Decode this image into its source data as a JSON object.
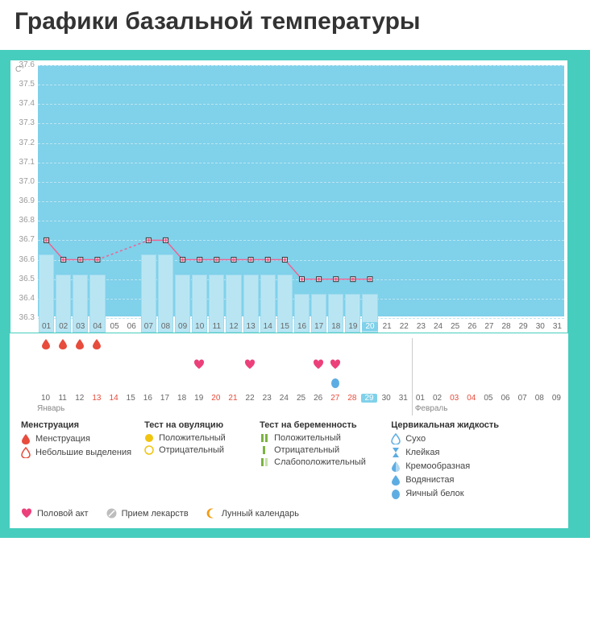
{
  "title": "Графики базальной температуры",
  "chart": {
    "ylabel": "C°",
    "ymin": 36.3,
    "ymax": 37.6,
    "ystep": 0.1,
    "xdays": [
      1,
      2,
      3,
      4,
      5,
      6,
      7,
      8,
      9,
      10,
      11,
      12,
      13,
      14,
      15,
      16,
      17,
      18,
      19,
      20,
      21,
      22,
      23,
      24,
      25,
      26,
      27,
      28,
      29,
      30,
      31
    ],
    "highlight_day": 20,
    "temps": [
      36.7,
      36.6,
      36.6,
      36.6,
      null,
      null,
      36.7,
      36.7,
      36.6,
      36.6,
      36.6,
      36.6,
      36.6,
      36.6,
      36.6,
      36.5,
      36.5,
      36.5,
      36.5,
      36.5,
      null,
      null,
      null,
      null,
      null,
      null,
      null,
      null,
      null,
      null,
      null
    ],
    "bar_fill": "#b9e5f3",
    "bar_border": "#9edbef",
    "area_bg": "#80d1ea",
    "grid_color": "#bbe6f3",
    "line_color": "#f06292",
    "marker_border": "#333333",
    "marker_fill": "#ffffff"
  },
  "symbols": {
    "menstruation_days": [
      1,
      2,
      3,
      4
    ],
    "intercourse_days": [
      10,
      13,
      17,
      18
    ],
    "eggwhite_days": [
      18
    ],
    "calendar_days": [
      10,
      11,
      12,
      13,
      14,
      15,
      16,
      17,
      18,
      19,
      20,
      21,
      22,
      23,
      24,
      25,
      26,
      27,
      28,
      29,
      30,
      31,
      1,
      2,
      3,
      4,
      5,
      6,
      7,
      8,
      9
    ],
    "cal_red": [
      13,
      14,
      20,
      21,
      27,
      28,
      3,
      4
    ],
    "cal_highlight": 29,
    "month1": "Январь",
    "month2": "Февраль",
    "month_break_index": 22
  },
  "legend": {
    "col1_head": "Менструация",
    "col1_items": [
      "Менструация",
      "Небольшие выделения"
    ],
    "col2_head": "Тест на овуляцию",
    "col2_items": [
      "Положительный",
      "Отрицательный"
    ],
    "col3_head": "Тест на беременность",
    "col3_items": [
      "Положительный",
      "Отрицательный",
      "Слабоположительный"
    ],
    "col4_head": "Цервикальная жидкость",
    "col4_items": [
      "Сухо",
      "Клейкая",
      "Кремообразная",
      "Водянистая",
      "Яичный белок"
    ],
    "bottom": [
      "Половой акт",
      "Прием лекарств",
      "Лунный календарь"
    ]
  },
  "colors": {
    "teal": "#47cdbe",
    "pink": "#ec407a",
    "red": "#e74c3c",
    "yellow": "#f1c40f",
    "green": "#7cb342",
    "blue": "#5dade2",
    "grey": "#bdbdbd",
    "orange": "#f39c12"
  }
}
